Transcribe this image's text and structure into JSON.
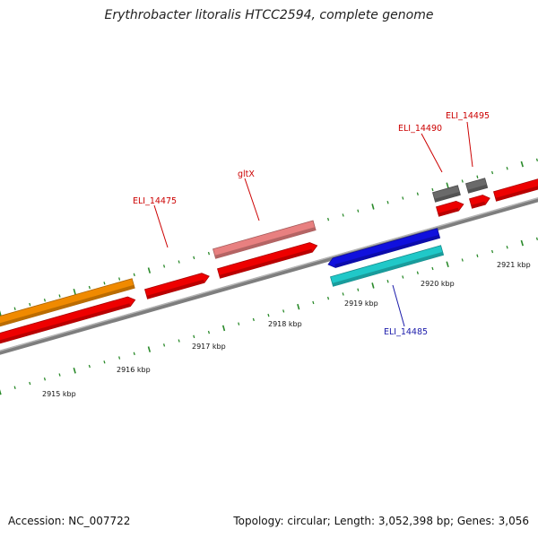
{
  "title": "Erythrobacter litoralis HTCC2594, complete genome",
  "accession_text": "Accession: NC_007722",
  "summary_text": "Topology: circular; Length: 3,052,398 bp; Genes: 3,056",
  "colors": {
    "backbone": "#8a8a8a",
    "tick": "#2a8a2a",
    "forward_label": "#cc0000",
    "reverse_label": "#1a1aaa"
  },
  "scale_labels": [
    "2915 kbp",
    "2916 kbp",
    "2917 kbp",
    "2918 kbp",
    "2919 kbp",
    "2920 kbp",
    "2921 kbp"
  ],
  "gene_labels": [
    {
      "id": "ELI_14475",
      "text": "ELI_14475",
      "color": "#cc0000"
    },
    {
      "id": "gltX",
      "text": "gltX",
      "color": "#cc0000"
    },
    {
      "id": "ELI_14490",
      "text": "ELI_14490",
      "color": "#cc0000"
    },
    {
      "id": "ELI_14495",
      "text": "ELI_14495",
      "color": "#cc0000"
    },
    {
      "id": "ELI_14485",
      "text": "ELI_14485",
      "color": "#1a1aaa"
    }
  ],
  "features": [
    {
      "name": "orange-feature",
      "color": "#f08a00",
      "strand": "forward"
    },
    {
      "name": "red-cds-1",
      "color": "#ee0000",
      "strand": "forward"
    },
    {
      "name": "red-cds-2",
      "color": "#ee0000",
      "strand": "forward"
    },
    {
      "name": "gltx-rna",
      "color": "#e88080",
      "strand": "forward"
    },
    {
      "name": "gltx-cds",
      "color": "#ee0000",
      "strand": "forward"
    },
    {
      "name": "blue-cds",
      "color": "#1010dd",
      "strand": "reverse"
    },
    {
      "name": "cyan-rna",
      "color": "#20c8c8",
      "strand": "reverse"
    },
    {
      "name": "gray-feature-1",
      "color": "#6a6a6a",
      "strand": "forward"
    },
    {
      "name": "red-cds-3",
      "color": "#ee0000",
      "strand": "forward"
    },
    {
      "name": "gray-feature-2",
      "color": "#6a6a6a",
      "strand": "forward"
    },
    {
      "name": "red-cds-4",
      "color": "#ee0000",
      "strand": "forward"
    },
    {
      "name": "red-cds-5",
      "color": "#ee0000",
      "strand": "forward"
    }
  ]
}
